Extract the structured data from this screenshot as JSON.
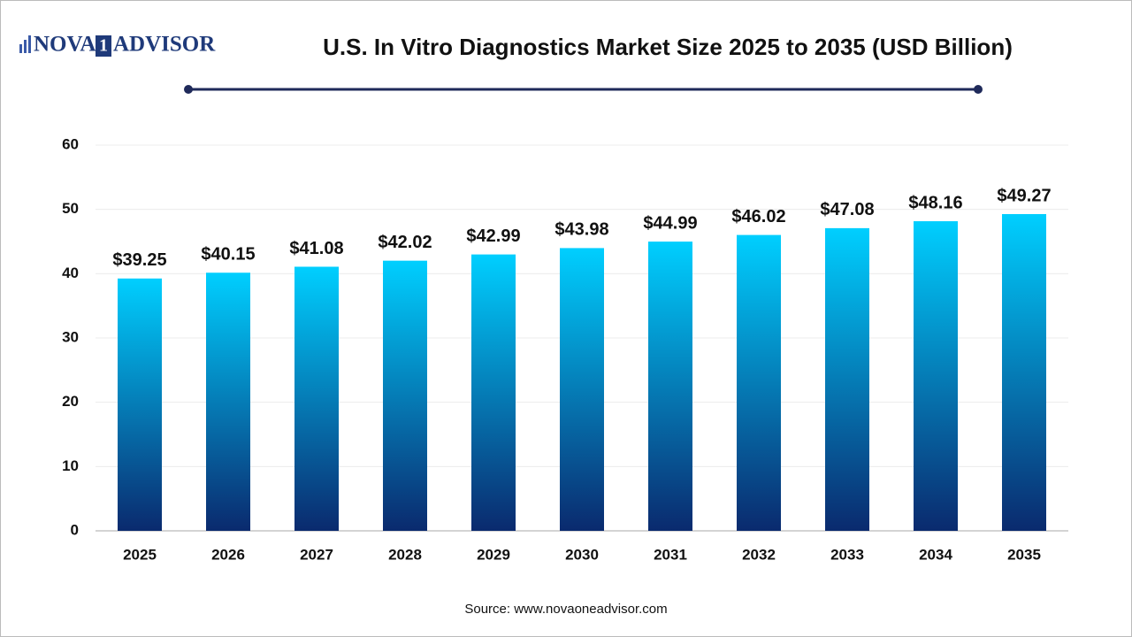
{
  "logo": {
    "left": "NOVA",
    "mark": "1",
    "right": "ADVISOR"
  },
  "chart_data": {
    "type": "bar",
    "title": "U.S. In Vitro Diagnostics Market Size 2025 to 2035 (USD Billion)",
    "categories": [
      "2025",
      "2026",
      "2027",
      "2028",
      "2029",
      "2030",
      "2031",
      "2032",
      "2033",
      "2034",
      "2035"
    ],
    "values": [
      39.25,
      40.15,
      41.08,
      42.02,
      42.99,
      43.98,
      44.99,
      46.02,
      47.08,
      48.16,
      49.27
    ],
    "value_labels": [
      "$39.25",
      "$40.15",
      "$41.08",
      "$42.02",
      "$42.99",
      "$43.98",
      "$44.99",
      "$46.02",
      "$47.08",
      "$48.16",
      "$49.27"
    ],
    "color": [
      "#00cfff",
      "#0a2a6e"
    ],
    "ylim": [
      0,
      60
    ],
    "yticks": [
      0,
      10,
      20,
      30,
      40,
      50,
      60
    ],
    "grid": true,
    "source": "Source: www.novaoneadvisor.com"
  }
}
